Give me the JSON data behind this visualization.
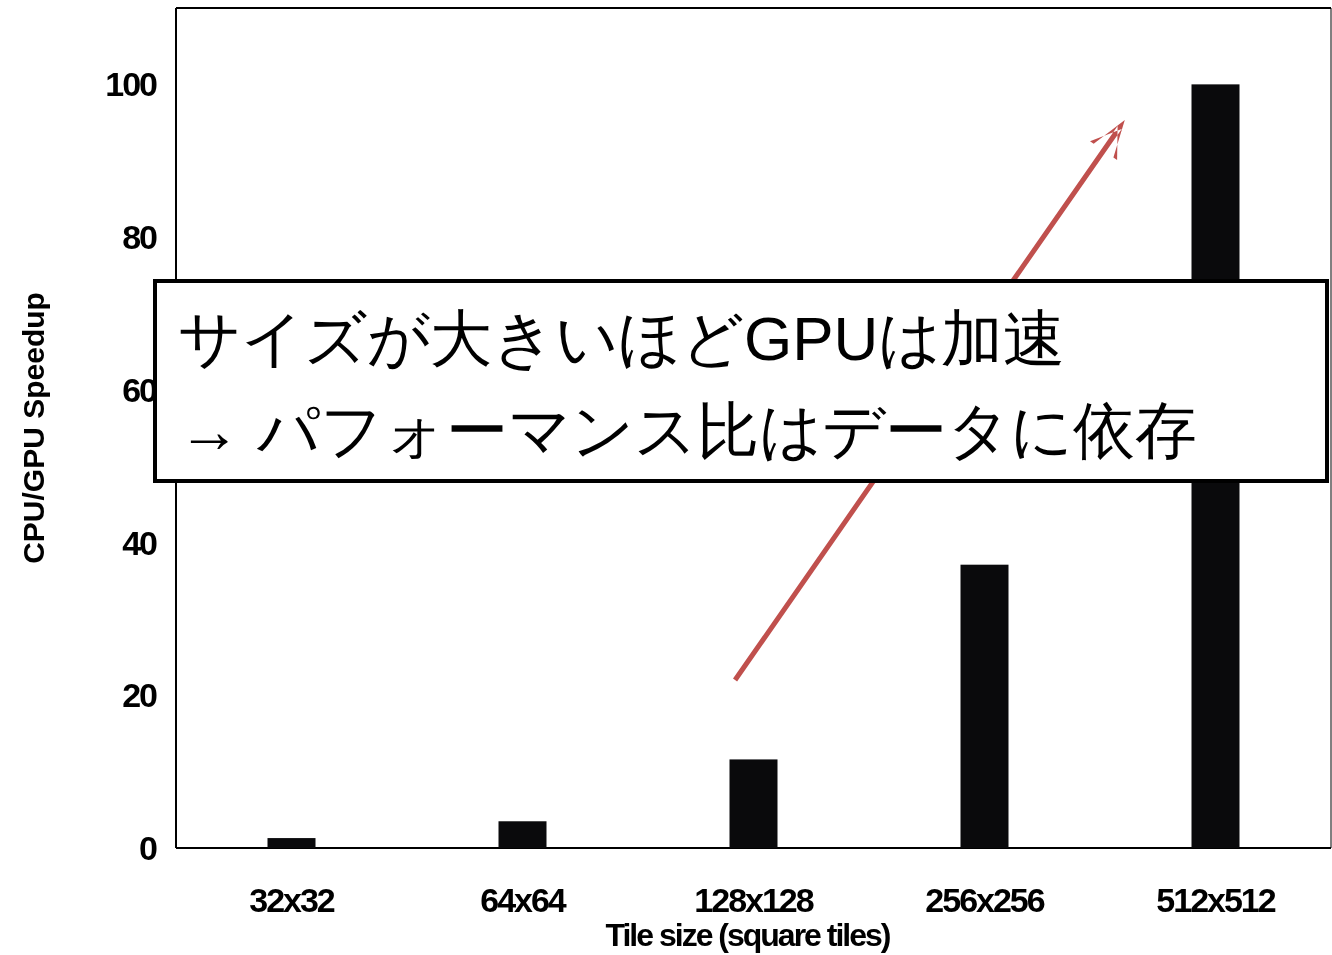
{
  "chart_data": {
    "type": "bar",
    "xlabel": "Tile size (square tiles)",
    "ylabel": "CPU/GPU Speedup",
    "categories": [
      "32x32",
      "64x64",
      "128x128",
      "256x256",
      "512x512"
    ],
    "values": [
      1.3,
      3.5,
      11.6,
      37.1,
      100
    ],
    "color": "#0a0a0c",
    "ylim": [
      0,
      110
    ],
    "yticks": [
      0,
      20,
      40,
      60,
      80,
      100
    ],
    "grid": false,
    "annotations": [
      "サイズが大きいほどGPUは加速",
      "→ パフォーマンス比はデータに依存"
    ]
  }
}
